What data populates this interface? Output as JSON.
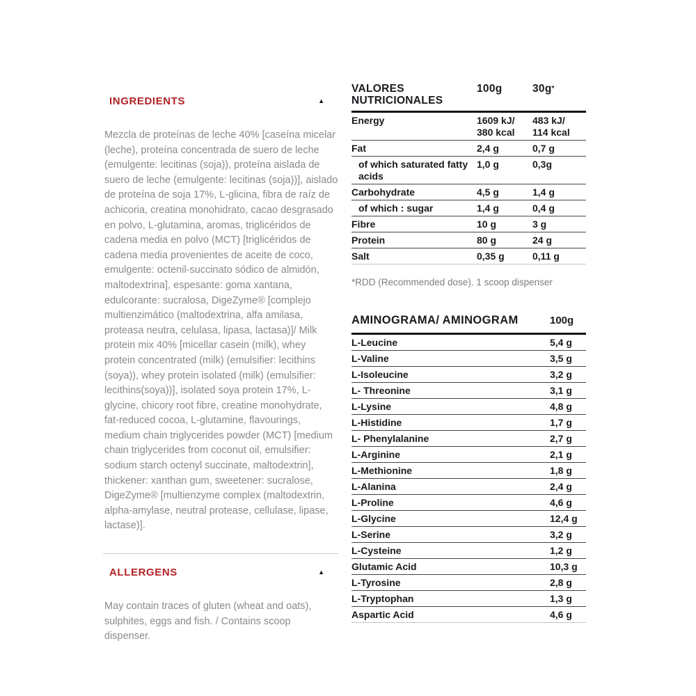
{
  "page": {
    "background": "#ffffff",
    "accent_red": "#b12226",
    "text_dark": "#1a1a1f",
    "text_gray": "#8a8a8a"
  },
  "icons": {
    "collapse_up": "▲"
  },
  "ingredients_section": {
    "title": "INGREDIENTS",
    "body": "Mezcla de proteínas de leche 40% [caseína micelar (leche), proteína concentrada de suero de leche (emulgente: lecitinas (soja)), proteína aislada de suero de leche (emulgente: lecitinas (soja))], aislado de proteína de soja 17%, L-glicina, fibra de raíz de achicoria, creatina monohidrato, cacao desgrasado en polvo, L-glutamina, aromas, triglicéridos de cadena media en polvo (MCT) [triglicéridos de cadena media provenientes de aceite de coco, emulgente: octenil-succinato sódico de almidón, maltodextrina], espesante: goma xantana, edulcorante: sucralosa, DigeZyme® [complejo multienzimático (maltodextrina, alfa amilasa, proteasa neutra, celulasa, lipasa, lactasa)]/ Milk protein mix 40% [micellar casein (milk), whey protein concentrated (milk) (emulsifier: lecithins (soya)), whey protein isolated (milk) (emulsifier: lecithins(soya))], isolated soya protein 17%, L-glycine, chicory root fibre, creatine monohydrate, fat-reduced cocoa, L-glutamine, flavourings, medium chain triglycerides powder (MCT) [medium chain triglycerides from coconut oil, emulsifier: sodium starch octenyl succinate, maltodextrin], thickener: xanthan gum, sweetener: sucralose, DigeZyme® [multienzyme complex (maltodextrin, alpha-amylase, neutral protease, cellulase, lipase, lactase)]."
  },
  "allergens_section": {
    "title": "ALLERGENS",
    "body": "May contain traces of gluten (wheat and oats), sulphites, eggs and fish. / Contains scoop dispenser."
  },
  "nutrition_table": {
    "title": "VALORES NUTRICIONALES",
    "col1_label": "100g",
    "col2_label": "30g",
    "col2_asterisk": "*",
    "rows": [
      {
        "label": "Energy",
        "indent": false,
        "v100": [
          "1609 kJ/",
          "380 kcal"
        ],
        "v30": [
          "483 kJ/",
          "114 kcal"
        ]
      },
      {
        "label": "Fat",
        "indent": false,
        "v100": [
          "2,4 g"
        ],
        "v30": [
          "0,7 g"
        ]
      },
      {
        "label": "of which saturated fatty acids",
        "indent": true,
        "v100": [
          "1,0 g"
        ],
        "v30": [
          "0,3g"
        ]
      },
      {
        "label": "Carbohydrate",
        "indent": false,
        "v100": [
          "4,5 g"
        ],
        "v30": [
          "1,4 g"
        ]
      },
      {
        "label": "of which : sugar",
        "indent": true,
        "v100": [
          "1,4 g"
        ],
        "v30": [
          "0,4 g"
        ]
      },
      {
        "label": "Fibre",
        "indent": false,
        "v100": [
          "10 g"
        ],
        "v30": [
          "3 g"
        ]
      },
      {
        "label": "Protein",
        "indent": false,
        "v100": [
          "80 g"
        ],
        "v30": [
          "24 g"
        ]
      },
      {
        "label": "Salt",
        "indent": false,
        "v100": [
          "0,35 g"
        ],
        "v30": [
          "0,11 g"
        ]
      }
    ],
    "note": "*RDD (Recommended dose). 1 scoop dispenser"
  },
  "aminogram_table": {
    "title": "AMINOGRAMA/ AMINOGRAM",
    "col_label": "100g",
    "rows": [
      {
        "label": "L-Leucine",
        "value": "5,4 g"
      },
      {
        "label": "L-Valine",
        "value": "3,5 g"
      },
      {
        "label": "L-Isoleucine",
        "value": "3,2 g"
      },
      {
        "label": "L- Threonine",
        "value": "3,1 g"
      },
      {
        "label": "L-Lysine",
        "value": "4,8 g"
      },
      {
        "label": "L-Histidine",
        "value": "1,7 g"
      },
      {
        "label": "L- Phenylalanine",
        "value": "2,7 g"
      },
      {
        "label": "L-Arginine",
        "value": "2,1 g"
      },
      {
        "label": "L-Methionine",
        "value": "1,8 g"
      },
      {
        "label": "L-Alanina",
        "value": "2,4 g"
      },
      {
        "label": "L-Proline",
        "value": "4,6 g"
      },
      {
        "label": "L-Glycine",
        "value": "12,4 g"
      },
      {
        "label": "L-Serine",
        "value": "3,2 g"
      },
      {
        "label": "L-Cysteine",
        "value": "1,2 g"
      },
      {
        "label": "Glutamic Acid",
        "value": "10,3 g"
      },
      {
        "label": "L-Tyrosine",
        "value": "2,8 g"
      },
      {
        "label": "L-Tryptophan",
        "value": "1,3 g"
      },
      {
        "label": "Aspartic Acid",
        "value": "4,6 g"
      }
    ]
  }
}
